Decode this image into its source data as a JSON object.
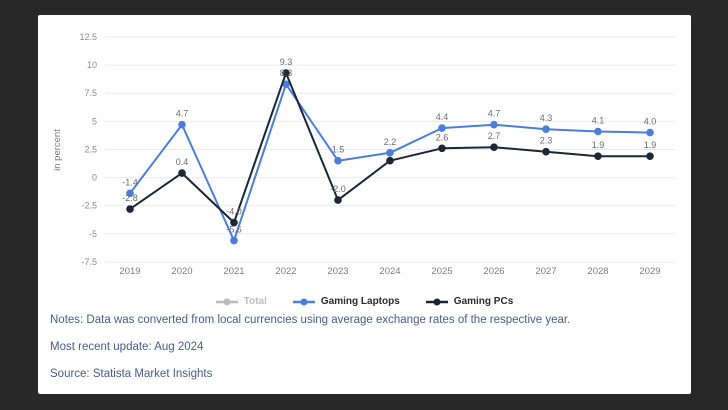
{
  "page": {
    "background_color": "#282828",
    "card_color": "#ffffff"
  },
  "chart_data": {
    "type": "line",
    "title": "",
    "xlabel": "",
    "ylabel": "in percent",
    "categories": [
      "2019",
      "2020",
      "2021",
      "2022",
      "2023",
      "2024",
      "2025",
      "2026",
      "2027",
      "2028",
      "2029"
    ],
    "ytick_labels": [
      "12.5",
      "10",
      "7.5",
      "5",
      "2.5",
      "0",
      "-2.5",
      "-5",
      "-7.5"
    ],
    "ytick_values": [
      12.5,
      10,
      7.5,
      5,
      2.5,
      0,
      -2.5,
      -5,
      -7.5
    ],
    "ylim": [
      -7.5,
      12.5
    ],
    "grid": true,
    "legend_position": "bottom",
    "series": [
      {
        "name": "Total",
        "color": "#bdbdbd",
        "disabled": true,
        "values": null,
        "labels": null
      },
      {
        "name": "Gaming Laptops",
        "color": "#4d7dda",
        "disabled": false,
        "values": [
          -1.4,
          4.7,
          -5.6,
          8.3,
          1.5,
          2.2,
          4.4,
          4.7,
          4.3,
          4.1,
          4.0
        ],
        "labels": [
          "-1.4",
          "4.7",
          "-5.6",
          "8.3",
          "1.5",
          "2.2",
          "4.4",
          "4.7",
          "4.3",
          "4.1",
          "4.0"
        ]
      },
      {
        "name": "Gaming PCs",
        "color": "#1c2637",
        "disabled": false,
        "values": [
          -2.8,
          0.4,
          -4.0,
          9.3,
          -2.0,
          1.5,
          2.6,
          2.7,
          2.3,
          1.9,
          1.9
        ],
        "labels": [
          "-2.8",
          "0.4",
          "-4.0",
          "9.3",
          "-2.0",
          "",
          "2.6",
          "2.7",
          "2.3",
          "1.9",
          "1.9"
        ]
      }
    ],
    "label_color": "#6b6b6b",
    "axis_text_color": "#8c8c8c",
    "gridline_color": "#ebebeb"
  },
  "footer": {
    "notes": "Notes: Data was converted from local currencies using average exchange rates of the respective year.",
    "update": "Most recent update: Aug 2024",
    "source": "Source: Statista Market Insights"
  }
}
